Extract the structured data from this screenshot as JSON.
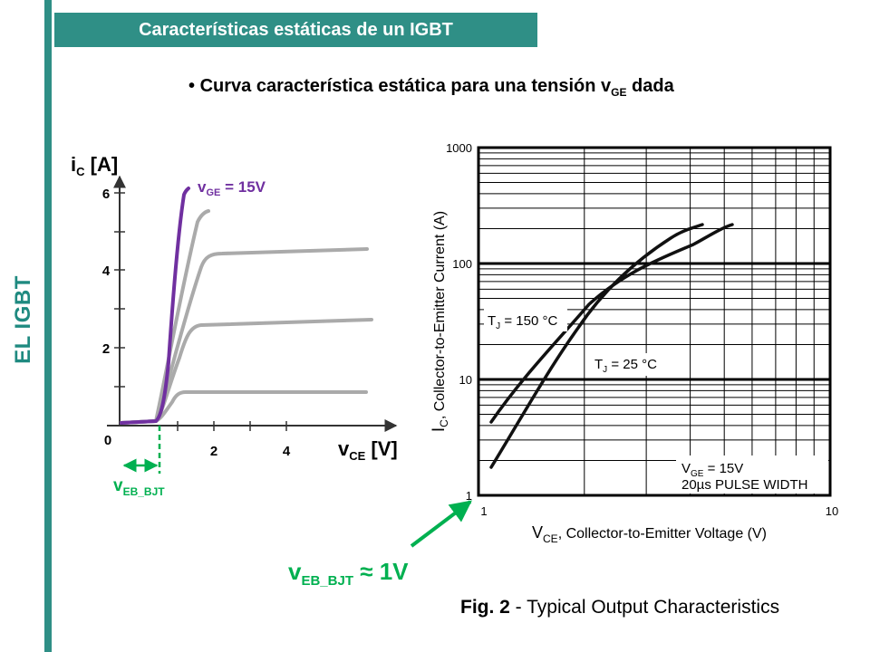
{
  "side_title": "EL IGBT",
  "header_title": "Características estáticas de un IGBT",
  "bullet": {
    "symbol": "•",
    "text_before": "Curva característica estática para una tensión v",
    "subscript": "GE",
    "text_after": " dada"
  },
  "left_chart": {
    "y_axis_label": "i",
    "y_axis_sub": "C",
    "y_axis_unit": " [A]",
    "x_axis_label": "v",
    "x_axis_sub": "CE",
    "x_axis_unit": " [V]",
    "y_ticks": [
      "6",
      "4",
      "2"
    ],
    "x_ticks": [
      "2",
      "4"
    ],
    "origin": "0",
    "vge_label": "v",
    "vge_sub": "GE",
    "vge_value": " = 15V",
    "veb_label": "v",
    "veb_sub": "EB_BJT",
    "colors": {
      "gray": "#aaaaaa",
      "purple": "#7030a0",
      "green": "#00b050"
    }
  },
  "datasheet": {
    "y_ticks": [
      "1000",
      "100",
      "10",
      "1"
    ],
    "x_ticks": [
      "1",
      "10"
    ],
    "y_axis_label_prefix": "I",
    "y_axis_label_sub": "C",
    "y_axis_label_text": ", Collector-to-Emitter Current (A)",
    "x_axis_label_prefix": "V",
    "x_axis_label_sub": "CE",
    "x_axis_label_text": ", Collector-to-Emitter Voltage (V)",
    "tj150_prefix": "T",
    "tj150_sub": "J",
    "tj150_text": " = 150 °C",
    "tj25_prefix": "T",
    "tj25_sub": "J",
    "tj25_text": " = 25 °C",
    "legend_line1_prefix": "V",
    "legend_line1_sub": "GE",
    "legend_line1_text": " = 15V",
    "legend_line2": "20µs PULSE WIDTH"
  },
  "annotation": {
    "label": "v",
    "sub": "EB_BJT",
    "value": " ≈ 1V"
  },
  "fig_caption": {
    "bold": "Fig. 2",
    "text": " - Typical Output Characteristics"
  }
}
